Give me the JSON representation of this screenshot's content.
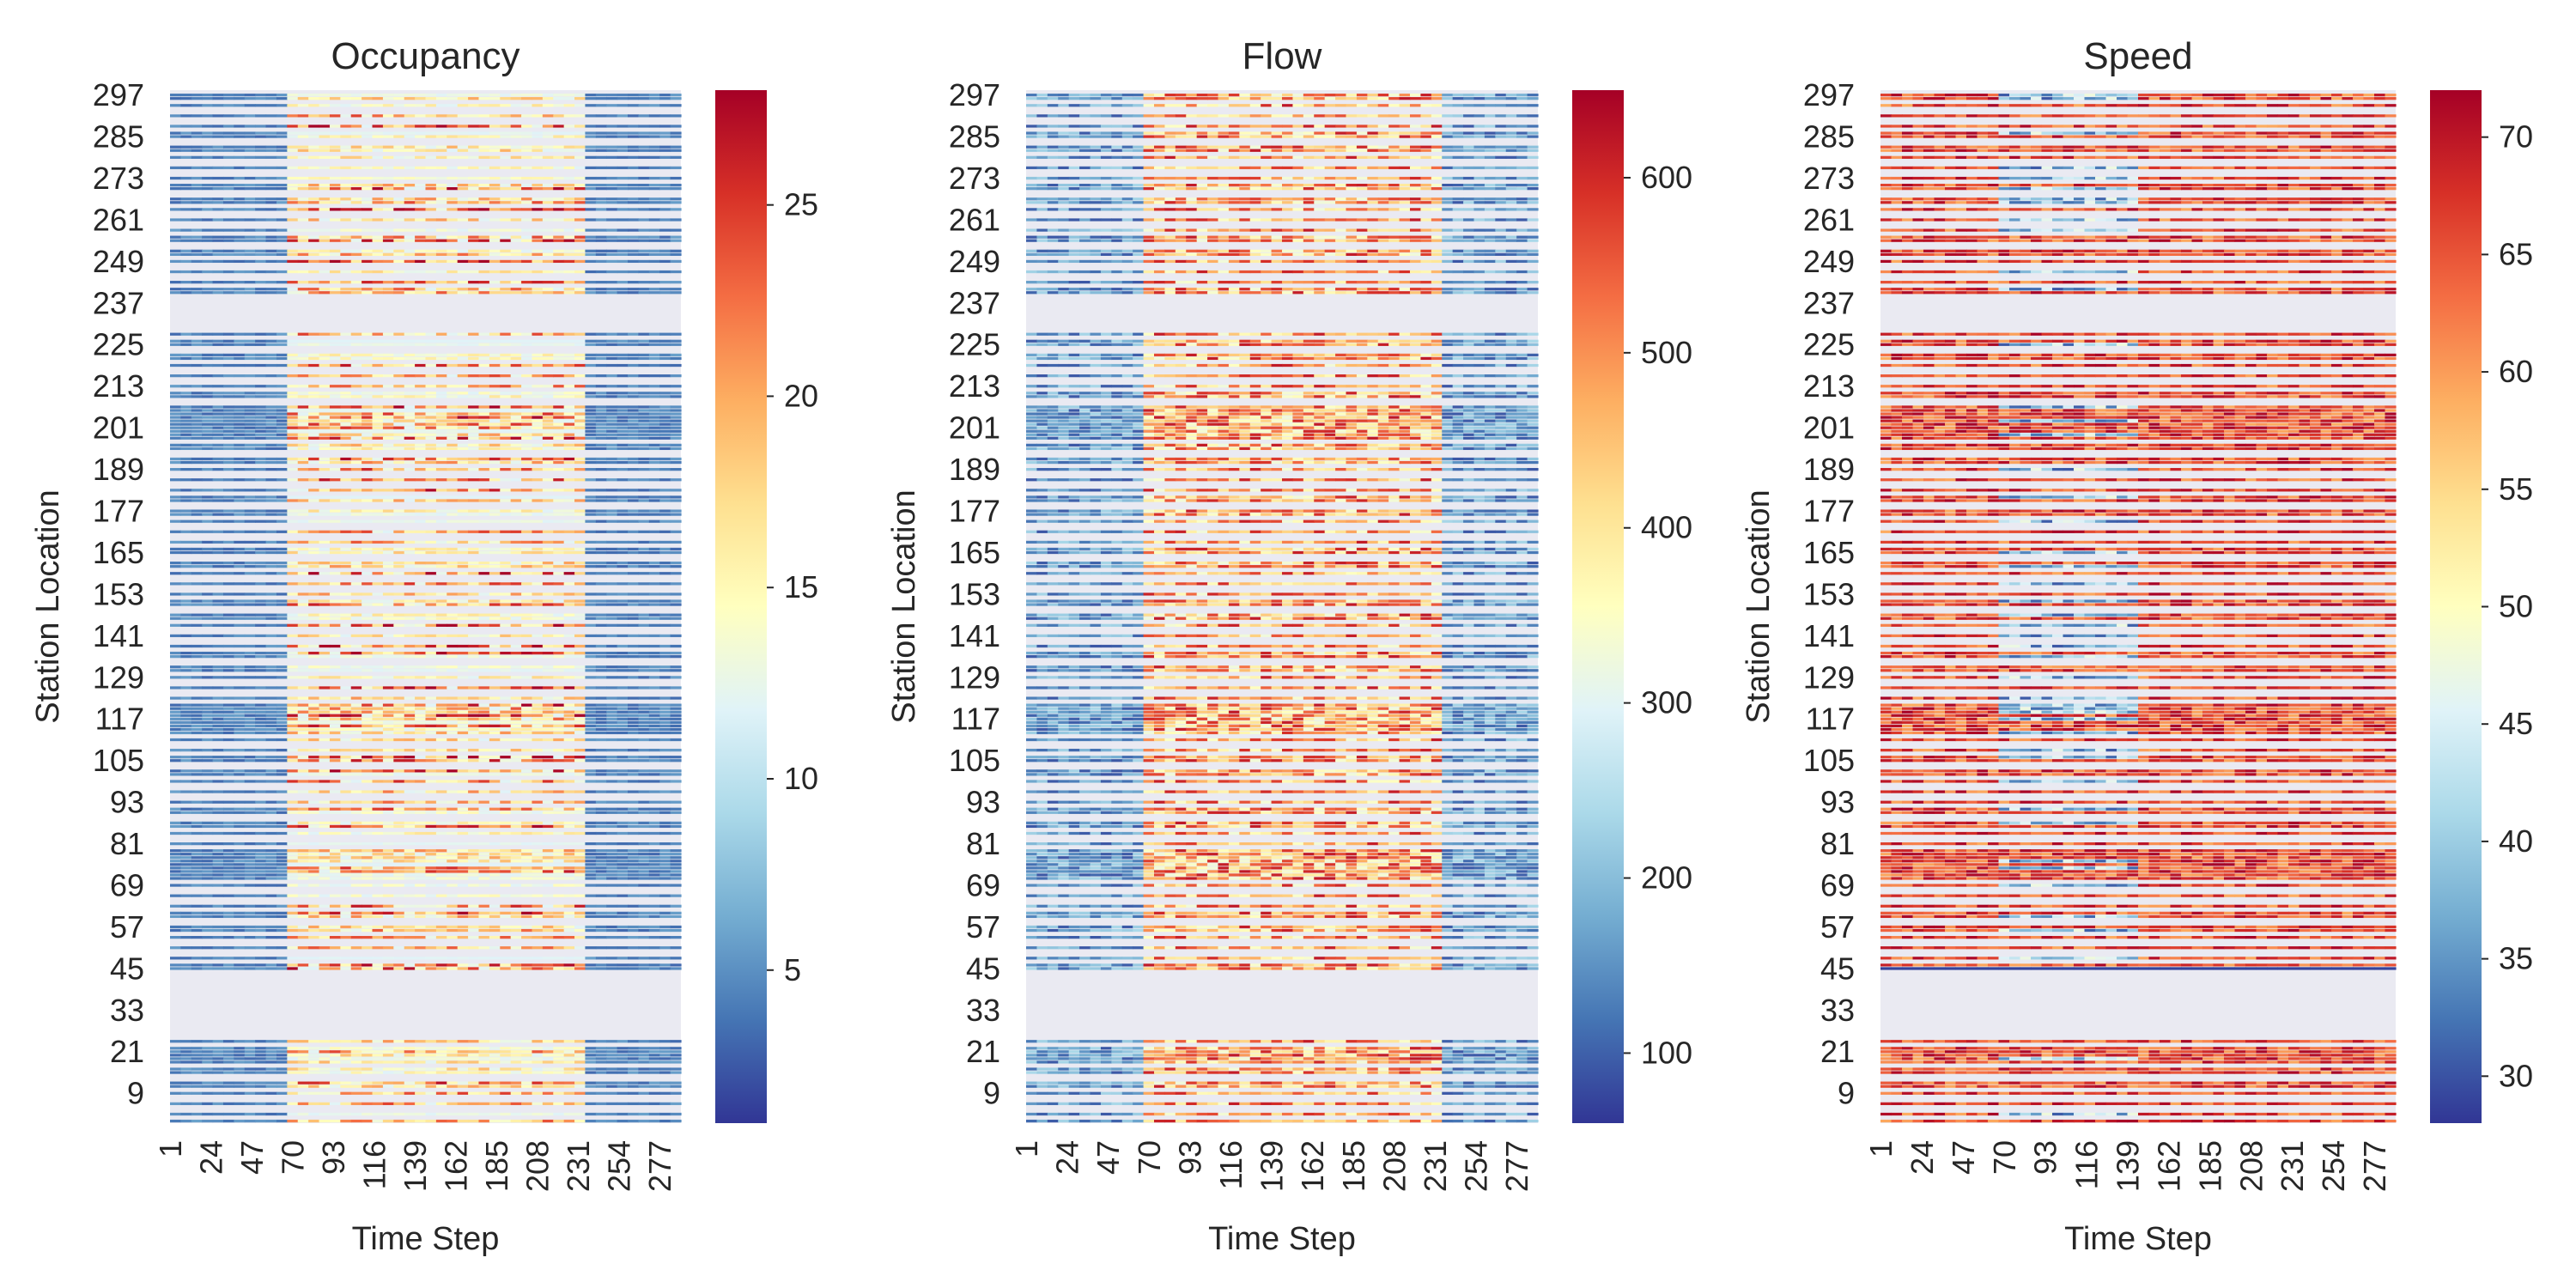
{
  "chart_data": [
    {
      "type": "heatmap",
      "title": "Occupancy",
      "xlabel": "Time Step",
      "ylabel": "Station Location",
      "x_range": [
        1,
        288
      ],
      "y_range": [
        1,
        298
      ],
      "x_tick_labels": [
        "1",
        "24",
        "47",
        "70",
        "93",
        "116",
        "139",
        "162",
        "185",
        "208",
        "231",
        "254",
        "277"
      ],
      "y_tick_labels": [
        "297",
        "285",
        "273",
        "261",
        "249",
        "237",
        "225",
        "213",
        "201",
        "189",
        "177",
        "165",
        "153",
        "141",
        "129",
        "117",
        "105",
        "93",
        "81",
        "69",
        "57",
        "45",
        "33",
        "21",
        "9"
      ],
      "colorbar": {
        "range": [
          1,
          28
        ],
        "ticks": [
          "5",
          "10",
          "15",
          "20",
          "25"
        ],
        "colormap": "RdYlBu_r"
      },
      "background_color": "#eaeaf2",
      "description_of_cells": "Horizontal station bands; low occupancy (blue) outside peak, high occupancy (red) between time steps ~70 and ~200 on several stations; stations 25-42 and 231-237 mostly missing"
    },
    {
      "type": "heatmap",
      "title": "Flow",
      "xlabel": "Time Step",
      "ylabel": "Station Location",
      "x_range": [
        1,
        288
      ],
      "y_range": [
        1,
        298
      ],
      "x_tick_labels": [
        "1",
        "24",
        "47",
        "70",
        "93",
        "116",
        "139",
        "162",
        "185",
        "208",
        "231",
        "254",
        "277"
      ],
      "y_tick_labels": [
        "297",
        "285",
        "273",
        "261",
        "249",
        "237",
        "225",
        "213",
        "201",
        "189",
        "177",
        "165",
        "153",
        "141",
        "129",
        "117",
        "105",
        "93",
        "81",
        "69",
        "57",
        "45",
        "33",
        "21",
        "9"
      ],
      "colorbar": {
        "range": [
          60,
          650
        ],
        "ticks": [
          "100",
          "200",
          "300",
          "400",
          "500",
          "600"
        ],
        "colormap": "RdYlBu_r"
      },
      "background_color": "#eaeaf2",
      "description_of_cells": "Low flow (blue) at night time steps 1-60 and after ~250, high flow (orange/red) between ~70 and ~230"
    },
    {
      "type": "heatmap",
      "title": "Speed",
      "xlabel": "Time Step",
      "ylabel": "Station Location",
      "x_range": [
        1,
        288
      ],
      "y_range": [
        1,
        298
      ],
      "x_tick_labels": [
        "1",
        "24",
        "47",
        "70",
        "93",
        "116",
        "139",
        "162",
        "185",
        "208",
        "231",
        "254",
        "277"
      ],
      "y_tick_labels": [
        "297",
        "285",
        "273",
        "261",
        "249",
        "237",
        "225",
        "213",
        "201",
        "189",
        "177",
        "165",
        "153",
        "141",
        "129",
        "117",
        "105",
        "93",
        "81",
        "69",
        "57",
        "45",
        "33",
        "21",
        "9"
      ],
      "colorbar": {
        "range": [
          28,
          72
        ],
        "ticks": [
          "30",
          "35",
          "40",
          "45",
          "50",
          "55",
          "60",
          "65",
          "70"
        ],
        "colormap": "RdYlBu_r"
      },
      "background_color": "#eaeaf2",
      "description_of_cells": "Mostly high speed (red) with congestion dips (blue) around time steps ~70-140 on several stations; station 45 uniformly low"
    }
  ],
  "colors": {
    "colormap_stops": [
      "#313695",
      "#4575b4",
      "#74add1",
      "#abd9e9",
      "#e0f3f8",
      "#ffffbf",
      "#fee090",
      "#fdae61",
      "#f46d43",
      "#d73027",
      "#a50026"
    ],
    "missing_background": "#eaeaf2"
  }
}
